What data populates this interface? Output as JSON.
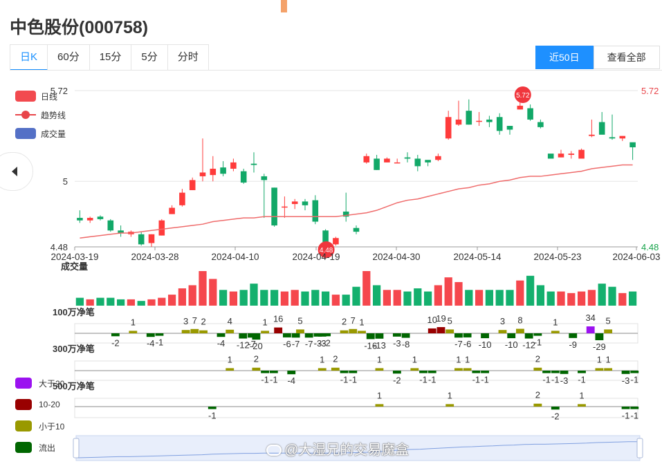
{
  "page": {
    "title": "中色股份(000758)",
    "tabs": [
      "日K",
      "60分",
      "15分",
      "5分",
      "分时"
    ],
    "active_tab": "日K",
    "range_buttons": [
      "近50日",
      "查看全部"
    ],
    "active_range": "近50日",
    "watermark": "@大湿兄的交易魔盒"
  },
  "legend": {
    "daily": "日线",
    "trend": "趋势线",
    "volume": "成交量"
  },
  "flow_legend": [
    {
      "label": "大于20",
      "color": "#9b12f0"
    },
    {
      "label": "10-20",
      "color": "#990000"
    },
    {
      "label": "小于10",
      "color": "#999900"
    },
    {
      "label": "流出",
      "color": "#006600"
    }
  ],
  "colors": {
    "up": "#ff3b3b",
    "down": "#12a868",
    "trend": "#ef6b6b",
    "volume_up": "#f5474d",
    "volume_down": "#14b06e"
  },
  "chart_data": {
    "type": "candlestick",
    "y_axis": {
      "ticks": [
        "5.72",
        "5",
        "4.48"
      ],
      "min": 4.48,
      "max": 5.72
    },
    "x_axis_labels": [
      "2024-03-19",
      "2024-03-28",
      "2024-04-10",
      "2024-04-19",
      "2024-04-30",
      "2024-05-14",
      "2024-05-23",
      "2024-06-03"
    ],
    "markers": [
      {
        "label": "5.72",
        "type": "high"
      },
      {
        "label": "4.48",
        "type": "low"
      }
    ],
    "candles": [
      [
        4.71,
        4.69,
        4.77,
        4.67
      ],
      [
        4.69,
        4.71,
        4.72,
        4.67
      ],
      [
        4.72,
        4.7,
        4.73,
        4.69
      ],
      [
        4.69,
        4.61,
        4.7,
        4.6
      ],
      [
        4.61,
        4.59,
        4.65,
        4.56
      ],
      [
        4.58,
        4.6,
        4.61,
        4.56
      ],
      [
        4.58,
        4.5,
        4.6,
        4.49
      ],
      [
        4.51,
        4.58,
        4.58,
        4.48
      ],
      [
        4.57,
        4.69,
        4.7,
        4.57
      ],
      [
        4.74,
        4.79,
        4.81,
        4.74
      ],
      [
        4.81,
        4.91,
        4.94,
        4.8
      ],
      [
        4.93,
        5.01,
        5.03,
        4.93
      ],
      [
        5.04,
        5.07,
        5.34,
        5.0
      ],
      [
        5.05,
        5.1,
        5.2,
        5.0
      ],
      [
        5.11,
        5.06,
        5.16,
        5.04
      ],
      [
        5.1,
        5.15,
        5.18,
        5.08
      ],
      [
        5.08,
        4.99,
        5.1,
        4.98
      ],
      [
        5.14,
        5.13,
        5.23,
        5.07
      ],
      [
        5.04,
        5.01,
        5.06,
        4.71
      ],
      [
        4.95,
        4.65,
        4.95,
        4.64
      ],
      [
        4.8,
        4.8,
        4.88,
        4.71
      ],
      [
        4.82,
        4.84,
        4.86,
        4.78
      ],
      [
        4.84,
        4.81,
        4.86,
        4.77
      ],
      [
        4.85,
        4.68,
        4.89,
        4.66
      ],
      [
        4.61,
        4.48,
        4.62,
        4.48
      ],
      [
        4.5,
        4.55,
        4.56,
        4.49
      ],
      [
        4.76,
        4.72,
        4.91,
        4.68
      ],
      [
        4.63,
        4.6,
        4.65,
        4.58
      ],
      [
        5.15,
        5.2,
        5.22,
        5.14
      ],
      [
        5.18,
        5.09,
        5.21,
        5.09
      ],
      [
        5.15,
        5.18,
        5.19,
        5.15
      ],
      [
        5.15,
        5.15,
        5.18,
        5.15
      ],
      [
        5.19,
        5.18,
        5.23,
        5.15
      ],
      [
        5.18,
        5.12,
        5.21,
        5.08
      ],
      [
        5.17,
        5.15,
        5.16,
        5.12
      ],
      [
        5.17,
        5.2,
        5.22,
        5.16
      ],
      [
        5.34,
        5.51,
        5.56,
        5.33
      ],
      [
        5.45,
        5.49,
        5.64,
        5.44
      ],
      [
        5.56,
        5.45,
        5.65,
        5.45
      ],
      [
        5.48,
        5.48,
        5.55,
        5.44
      ],
      [
        5.49,
        5.47,
        5.52,
        5.43
      ],
      [
        5.51,
        5.4,
        5.54,
        5.37
      ],
      [
        5.44,
        5.41,
        5.44,
        5.37
      ],
      [
        5.57,
        5.6,
        5.72,
        5.57
      ],
      [
        5.58,
        5.49,
        5.61,
        5.48
      ],
      [
        5.47,
        5.43,
        5.49,
        5.42
      ],
      [
        5.22,
        5.18,
        5.21,
        5.19
      ],
      [
        5.19,
        5.22,
        5.25,
        5.19
      ],
      [
        5.21,
        5.22,
        5.24,
        5.18
      ],
      [
        5.18,
        5.25,
        5.26,
        5.21
      ],
      [
        5.36,
        5.37,
        5.49,
        5.35
      ],
      [
        5.47,
        5.37,
        5.55,
        5.4
      ],
      [
        5.35,
        5.34,
        5.53,
        5.33
      ],
      [
        5.34,
        5.36,
        5.36,
        5.32
      ],
      [
        5.31,
        5.27,
        5.29,
        5.17
      ]
    ],
    "trend": [
      4.55,
      4.56,
      4.57,
      4.58,
      4.59,
      4.59,
      4.6,
      4.61,
      4.62,
      4.63,
      4.64,
      4.65,
      4.66,
      4.68,
      4.69,
      4.7,
      4.71,
      4.71,
      4.72,
      4.72,
      4.72,
      4.72,
      4.72,
      4.72,
      4.72,
      4.72,
      4.73,
      4.74,
      4.75,
      4.77,
      4.8,
      4.83,
      4.85,
      4.86,
      4.88,
      4.9,
      4.92,
      4.94,
      4.95,
      4.97,
      4.98,
      5.0,
      5.01,
      5.03,
      5.04,
      5.04,
      5.05,
      5.06,
      5.07,
      5.08,
      5.1,
      5.11,
      5.12,
      5.13,
      5.13
    ],
    "volume": [
      5,
      4,
      5,
      5,
      4,
      4,
      3,
      4,
      5,
      7,
      11,
      13,
      22,
      17,
      10,
      9,
      10,
      14,
      10,
      10,
      9,
      10,
      9,
      10,
      9,
      7,
      7,
      12,
      22,
      13,
      10,
      10,
      9,
      11,
      9,
      13,
      18,
      15,
      10,
      10,
      10,
      10,
      10,
      16,
      19,
      13,
      9,
      9,
      8,
      9,
      10,
      14,
      12,
      8,
      9
    ],
    "flow_100w": [
      0,
      -2,
      1,
      -4,
      -1,
      3,
      7,
      2,
      -4,
      4,
      -12,
      -7,
      -20,
      1,
      16,
      -6,
      -7,
      5,
      -7,
      -3,
      -3,
      -2,
      2,
      7,
      1,
      -16,
      -13,
      -3,
      -8,
      10,
      19,
      5,
      -7,
      -6,
      -10,
      3,
      -10,
      8,
      -12,
      -1,
      1,
      -9,
      34,
      -29,
      5
    ],
    "flow_300w": [
      0,
      1,
      2,
      -1,
      -1,
      -4,
      1,
      2,
      -1,
      -1,
      1,
      -2,
      1,
      -1,
      -1,
      1,
      1,
      -1,
      -1,
      2,
      -1,
      -1,
      -3,
      -1,
      1,
      1,
      -3,
      -1
    ],
    "flow_500w": [
      -1,
      1,
      1,
      2,
      -2,
      1,
      -1,
      -1
    ],
    "flow_panels": [
      "100万净笔",
      "300万净笔",
      "500万净笔"
    ]
  }
}
